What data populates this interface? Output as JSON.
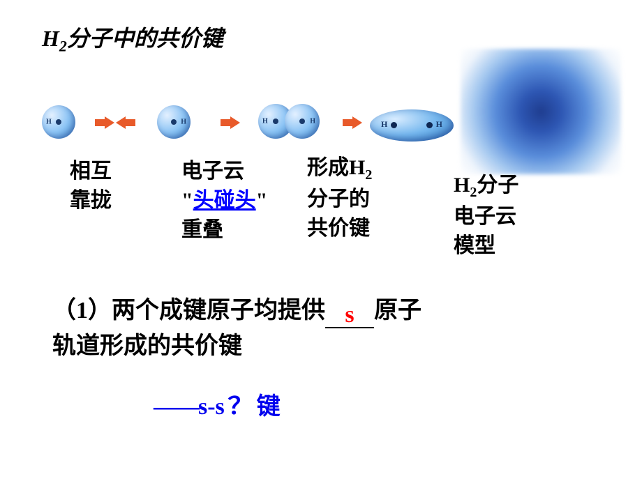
{
  "title_html": "H<sub>2</sub>分子中的共价键",
  "diagram": {
    "atom_label": "H",
    "colors": {
      "sphere_light": "#e3f0ff",
      "sphere_mid": "#8ec5f5",
      "sphere_dark": "#3d8fd4",
      "nucleus": "#1a3a6b",
      "arrow": "#e85a2a",
      "cloud_center": "#1f3d8f",
      "cloud_outer": "#a3c7ef"
    }
  },
  "labels": {
    "l1_line1": "相互",
    "l1_line2": "靠拢",
    "l2_line1": "电子云",
    "l2_quote_open": "\"",
    "l2_headon": "头碰头",
    "l2_quote_close": "\"",
    "l2_line3": "重叠",
    "l3_html_line1": "形成H<sub>2</sub>",
    "l3_line2": "分子的",
    "l3_line3": "共价键",
    "l4_html_line1": "H<sub>2</sub>分子",
    "l4_line2": "电子云",
    "l4_line3": "模型"
  },
  "statement": {
    "prefix": "（1）两个成键原子均提供",
    "answer": "s",
    "suffix1": "原子",
    "line2": "轨道形成的共价键"
  },
  "conclusion": {
    "dash": "——",
    "bondtype": "s-s",
    "sigma": "？",
    "tail": "键"
  }
}
